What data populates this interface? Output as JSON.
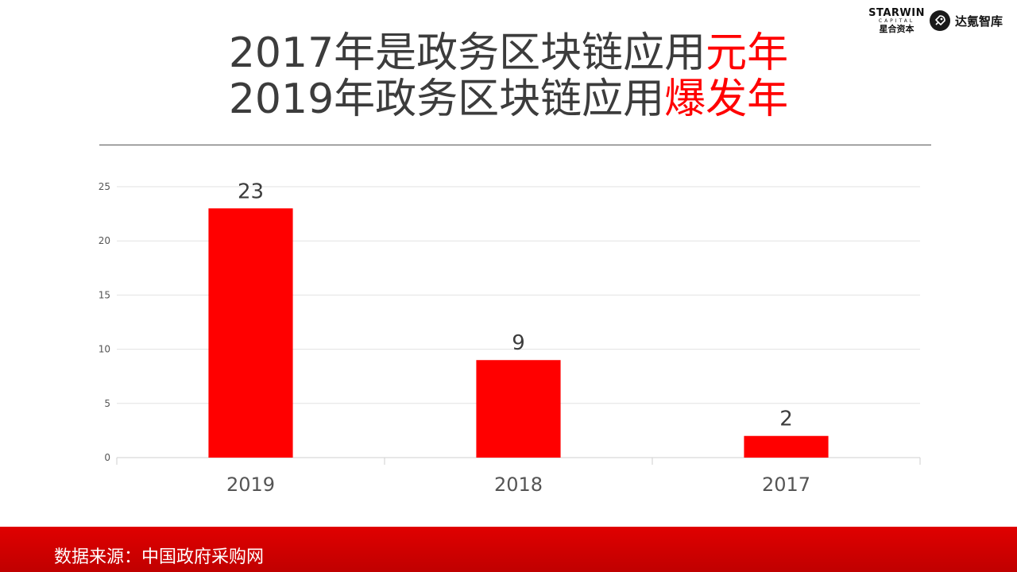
{
  "logo": {
    "brand_en": "STARWIN",
    "brand_en_sub": "CAPITAL",
    "brand_cn": "星合资本",
    "think_tank": "达氪智库",
    "mark_icon": "rocket-icon"
  },
  "title": {
    "line1_main": "2017年是政务区块链应用",
    "line1_accent": "元年",
    "line2_main": "2019年政务区块链应用",
    "line2_accent": "爆发年",
    "accent_color": "#ff0000",
    "text_color": "#3c3c3c"
  },
  "chart_data": {
    "type": "bar",
    "categories": [
      "2019",
      "2018",
      "2017"
    ],
    "values": [
      23,
      9,
      2
    ],
    "data_labels": [
      "23",
      "9",
      "2"
    ],
    "y_ticks": [
      "0",
      "5",
      "10",
      "15",
      "20",
      "25"
    ],
    "ylim": [
      0,
      25
    ],
    "grid": true,
    "legend": "none",
    "bar_color": "#ff0000",
    "title": "",
    "xlabel": "",
    "ylabel": ""
  },
  "footer": {
    "source_text": "数据来源：中国政府采购网",
    "background": "#d00000"
  }
}
